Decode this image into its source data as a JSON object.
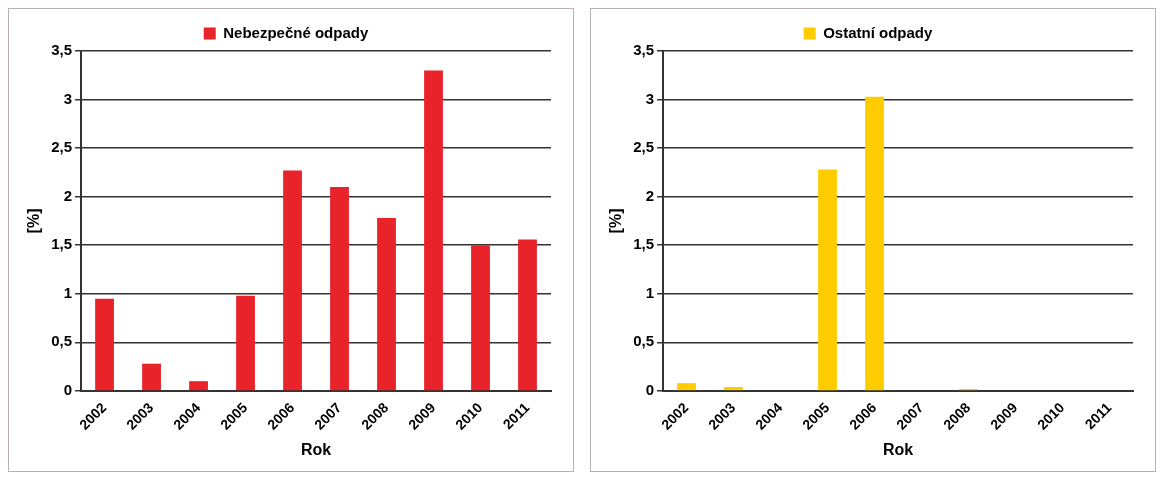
{
  "chart_data": [
    {
      "type": "bar",
      "categories": [
        "2002",
        "2003",
        "2004",
        "2005",
        "2006",
        "2007",
        "2008",
        "2009",
        "2010",
        "2011"
      ],
      "series": [
        {
          "name": "Nebezpečné odpady",
          "color": "#e8232a",
          "values": [
            0.95,
            0.28,
            0.1,
            0.98,
            2.27,
            2.1,
            1.78,
            3.3,
            1.5,
            1.56
          ]
        }
      ],
      "xlabel": "Rok",
      "ylabel": "[%]",
      "ylim": [
        0,
        3.5
      ],
      "yticks": [
        {
          "value": 0,
          "label": "0"
        },
        {
          "value": 0.5,
          "label": "0,5"
        },
        {
          "value": 1,
          "label": "1"
        },
        {
          "value": 1.5,
          "label": "1,5"
        },
        {
          "value": 2,
          "label": "2"
        },
        {
          "value": 2.5,
          "label": "2,5"
        },
        {
          "value": 3,
          "label": "3"
        },
        {
          "value": 3.5,
          "label": "3,5"
        }
      ],
      "grid": "y",
      "legend": "top"
    },
    {
      "type": "bar",
      "categories": [
        "2002",
        "2003",
        "2004",
        "2005",
        "2006",
        "2007",
        "2008",
        "2009",
        "2010",
        "2011"
      ],
      "series": [
        {
          "name": "Ostatní odpady",
          "color": "#ffcc00",
          "values": [
            0.08,
            0.04,
            0,
            2.28,
            3.03,
            0,
            0.02,
            0,
            0,
            0
          ]
        }
      ],
      "xlabel": "Rok",
      "ylabel": "[%]",
      "ylim": [
        0,
        3.5
      ],
      "yticks": [
        {
          "value": 0,
          "label": "0"
        },
        {
          "value": 0.5,
          "label": "0,5"
        },
        {
          "value": 1,
          "label": "1"
        },
        {
          "value": 1.5,
          "label": "1,5"
        },
        {
          "value": 2,
          "label": "2"
        },
        {
          "value": 2.5,
          "label": "2,5"
        },
        {
          "value": 3,
          "label": "3"
        },
        {
          "value": 3.5,
          "label": "3,5"
        }
      ],
      "grid": "y",
      "legend": "top"
    }
  ]
}
